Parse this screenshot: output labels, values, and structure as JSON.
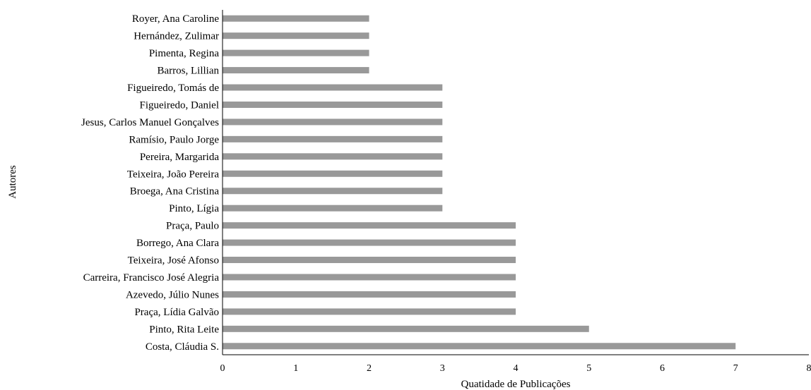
{
  "chart_data": {
    "type": "bar",
    "orientation": "horizontal",
    "title": "",
    "xlabel": "Quatidade de Publicações",
    "ylabel": "Autores",
    "xlim": [
      0,
      8
    ],
    "xticks": [
      0,
      1,
      2,
      3,
      4,
      5,
      6,
      7,
      8
    ],
    "grid": false,
    "bar_color": "#999999",
    "categories": [
      "Royer, Ana Caroline",
      "Hernández, Zulimar",
      "Pimenta, Regina",
      "Barros, Lillian",
      "Figueiredo, Tomás de",
      "Figueiredo, Daniel",
      "Jesus, Carlos Manuel Gonçalves",
      "Ramísio, Paulo Jorge",
      "Pereira, Margarida",
      "Teixeira, João Pereira",
      "Broega, Ana Cristina",
      "Pinto, Lígia",
      "Praça, Paulo",
      "Borrego, Ana Clara",
      "Teixeira, José Afonso",
      "Carreira, Francisco José Alegria",
      "Azevedo, Júlio Nunes",
      "Praça, Lídia Galvão",
      "Pinto, Rita Leite",
      "Costa, Cláudia S."
    ],
    "values": [
      2,
      2,
      2,
      2,
      3,
      3,
      3,
      3,
      3,
      3,
      3,
      3,
      4,
      4,
      4,
      4,
      4,
      4,
      5,
      7
    ]
  }
}
